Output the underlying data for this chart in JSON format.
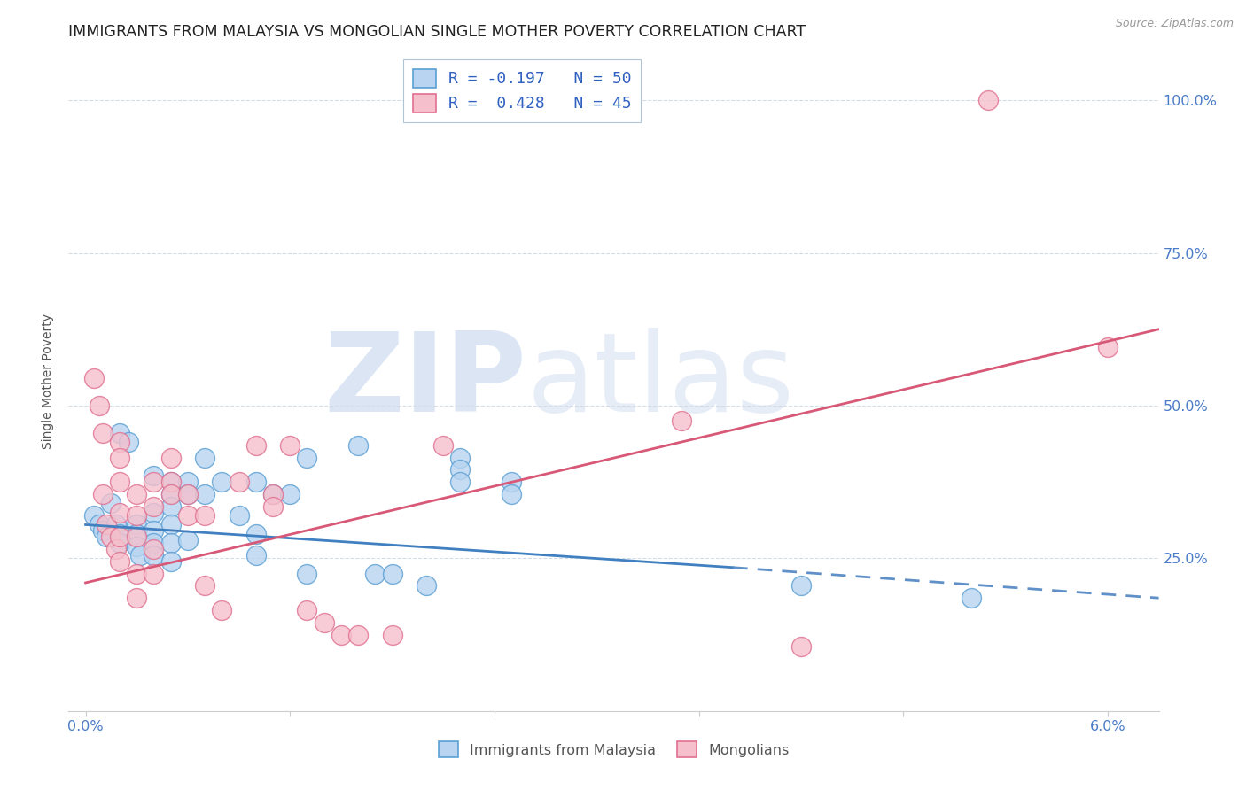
{
  "title": "IMMIGRANTS FROM MALAYSIA VS MONGOLIAN SINGLE MOTHER POVERTY CORRELATION CHART",
  "source": "Source: ZipAtlas.com",
  "ylabel": "Single Mother Poverty",
  "ylim": [
    0.0,
    1.08
  ],
  "xlim": [
    -0.001,
    0.063
  ],
  "y_ticks": [
    0.25,
    0.5,
    0.75,
    1.0
  ],
  "y_tick_labels": [
    "25.0%",
    "50.0%",
    "75.0%",
    "100.0%"
  ],
  "x_ticks": [
    0.0,
    0.012,
    0.024,
    0.036,
    0.048,
    0.06
  ],
  "x_tick_labels": [
    "0.0%",
    "",
    "",
    "",
    "",
    "6.0%"
  ],
  "legend_entries": [
    {
      "label": "R = -0.197   N = 50",
      "color": "#7fb2e5"
    },
    {
      "label": "R =  0.428   N = 45",
      "color": "#f4a0b0"
    }
  ],
  "bottom_legend": [
    {
      "label": "Immigrants from Malaysia",
      "color_face": "#a8ccee",
      "color_edge": "#5a9fd4"
    },
    {
      "label": "Mongolians",
      "color_face": "#f9c0ce",
      "color_edge": "#e87090"
    }
  ],
  "watermark_zip": "ZIP",
  "watermark_atlas": "atlas",
  "blue_line_solid": {
    "x0": 0.0,
    "y0": 0.305,
    "x1": 0.038,
    "y1": 0.235
  },
  "blue_line_dashed": {
    "x0": 0.038,
    "y0": 0.235,
    "x1": 0.063,
    "y1": 0.185
  },
  "pink_line": {
    "x0": 0.0,
    "y0": 0.21,
    "x1": 0.063,
    "y1": 0.625
  },
  "blue_points": [
    [
      0.0005,
      0.32
    ],
    [
      0.0008,
      0.305
    ],
    [
      0.001,
      0.295
    ],
    [
      0.0012,
      0.285
    ],
    [
      0.0015,
      0.34
    ],
    [
      0.0018,
      0.305
    ],
    [
      0.002,
      0.29
    ],
    [
      0.002,
      0.275
    ],
    [
      0.002,
      0.455
    ],
    [
      0.0025,
      0.44
    ],
    [
      0.003,
      0.305
    ],
    [
      0.003,
      0.29
    ],
    [
      0.003,
      0.27
    ],
    [
      0.0032,
      0.255
    ],
    [
      0.004,
      0.385
    ],
    [
      0.004,
      0.325
    ],
    [
      0.004,
      0.295
    ],
    [
      0.004,
      0.275
    ],
    [
      0.004,
      0.255
    ],
    [
      0.005,
      0.375
    ],
    [
      0.005,
      0.355
    ],
    [
      0.005,
      0.335
    ],
    [
      0.005,
      0.305
    ],
    [
      0.005,
      0.275
    ],
    [
      0.005,
      0.245
    ],
    [
      0.006,
      0.375
    ],
    [
      0.006,
      0.355
    ],
    [
      0.006,
      0.28
    ],
    [
      0.007,
      0.415
    ],
    [
      0.007,
      0.355
    ],
    [
      0.008,
      0.375
    ],
    [
      0.009,
      0.32
    ],
    [
      0.01,
      0.375
    ],
    [
      0.01,
      0.29
    ],
    [
      0.01,
      0.255
    ],
    [
      0.011,
      0.355
    ],
    [
      0.012,
      0.355
    ],
    [
      0.013,
      0.415
    ],
    [
      0.013,
      0.225
    ],
    [
      0.016,
      0.435
    ],
    [
      0.017,
      0.225
    ],
    [
      0.018,
      0.225
    ],
    [
      0.02,
      0.205
    ],
    [
      0.022,
      0.415
    ],
    [
      0.022,
      0.395
    ],
    [
      0.022,
      0.375
    ],
    [
      0.025,
      0.375
    ],
    [
      0.025,
      0.355
    ],
    [
      0.042,
      0.205
    ],
    [
      0.052,
      0.185
    ]
  ],
  "pink_points": [
    [
      0.0005,
      0.545
    ],
    [
      0.0008,
      0.5
    ],
    [
      0.001,
      0.455
    ],
    [
      0.001,
      0.355
    ],
    [
      0.0012,
      0.305
    ],
    [
      0.0015,
      0.285
    ],
    [
      0.0018,
      0.265
    ],
    [
      0.002,
      0.44
    ],
    [
      0.002,
      0.415
    ],
    [
      0.002,
      0.375
    ],
    [
      0.002,
      0.325
    ],
    [
      0.002,
      0.285
    ],
    [
      0.002,
      0.245
    ],
    [
      0.003,
      0.355
    ],
    [
      0.003,
      0.32
    ],
    [
      0.003,
      0.285
    ],
    [
      0.003,
      0.225
    ],
    [
      0.003,
      0.185
    ],
    [
      0.004,
      0.375
    ],
    [
      0.004,
      0.335
    ],
    [
      0.004,
      0.265
    ],
    [
      0.004,
      0.225
    ],
    [
      0.005,
      0.415
    ],
    [
      0.005,
      0.375
    ],
    [
      0.005,
      0.355
    ],
    [
      0.006,
      0.355
    ],
    [
      0.006,
      0.32
    ],
    [
      0.007,
      0.32
    ],
    [
      0.007,
      0.205
    ],
    [
      0.008,
      0.165
    ],
    [
      0.009,
      0.375
    ],
    [
      0.01,
      0.435
    ],
    [
      0.011,
      0.355
    ],
    [
      0.011,
      0.335
    ],
    [
      0.012,
      0.435
    ],
    [
      0.013,
      0.165
    ],
    [
      0.014,
      0.145
    ],
    [
      0.015,
      0.125
    ],
    [
      0.016,
      0.125
    ],
    [
      0.018,
      0.125
    ],
    [
      0.021,
      0.435
    ],
    [
      0.035,
      0.475
    ],
    [
      0.042,
      0.105
    ],
    [
      0.053,
      1.0
    ],
    [
      0.06,
      0.595
    ]
  ],
  "background_color": "#ffffff",
  "grid_color": "#d4dce8",
  "title_fontsize": 12.5,
  "axis_label_fontsize": 10,
  "tick_label_color": "#4a7cc7",
  "tick_label_fontsize": 11.5
}
